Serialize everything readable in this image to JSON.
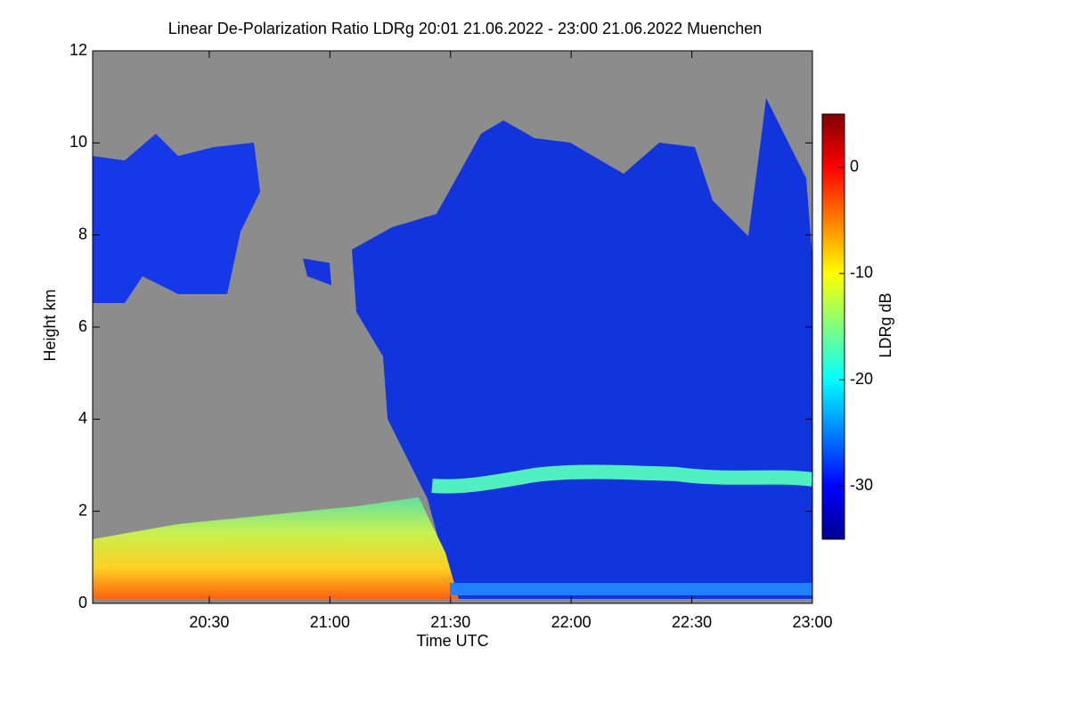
{
  "chart_data": {
    "type": "heatmap",
    "title": "Linear De-Polarization Ratio LDRg   20:01 21.06.2022 - 23:00 21.06.2022 Muenchen",
    "x_label": "Time UTC",
    "y_label": "Height km",
    "colorbar_label": "LDRg dB",
    "xlim": [
      20.0167,
      23.0
    ],
    "xticks": [
      {
        "value": 20.5,
        "label": "20:30"
      },
      {
        "value": 21.0,
        "label": "21:00"
      },
      {
        "value": 21.5,
        "label": "21:30"
      },
      {
        "value": 22.0,
        "label": "22:00"
      },
      {
        "value": 22.5,
        "label": "22:30"
      },
      {
        "value": 23.0,
        "label": "23:00"
      }
    ],
    "ylim": [
      0,
      12
    ],
    "yticks": [
      0,
      2,
      4,
      6,
      8,
      10,
      12
    ],
    "clim": [
      -35,
      5
    ],
    "cticks": [
      0,
      -10,
      -20,
      -30
    ],
    "colormap": "jet"
  }
}
